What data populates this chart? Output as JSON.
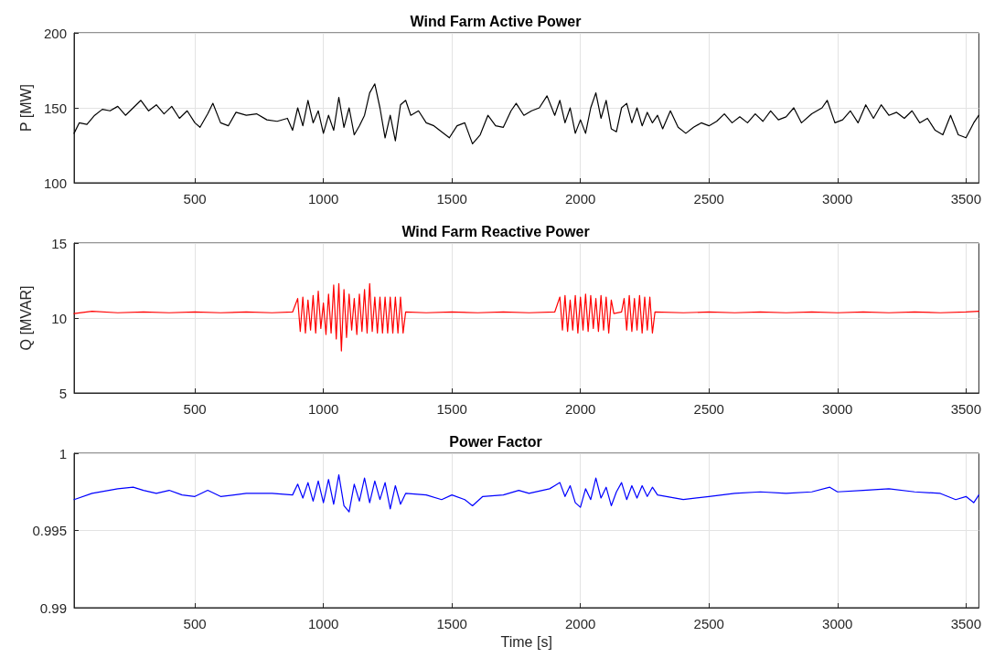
{
  "chart_data": [
    {
      "type": "line",
      "title": "Wind Farm Active Power",
      "ylabel": "P [MW]",
      "xlim": [
        30,
        3550
      ],
      "xticks": [
        500,
        1000,
        1500,
        2000,
        2500,
        3000,
        3500
      ],
      "ylim": [
        100,
        200
      ],
      "yticks": [
        100,
        150,
        200
      ],
      "grid": true,
      "marker": "none",
      "line_style": "solid",
      "series": [
        {
          "color": "#000000",
          "x": [
            30,
            50,
            80,
            110,
            140,
            170,
            200,
            230,
            260,
            290,
            320,
            350,
            380,
            410,
            440,
            470,
            500,
            520,
            550,
            570,
            600,
            630,
            660,
            700,
            740,
            780,
            820,
            860,
            880,
            900,
            920,
            940,
            960,
            980,
            1000,
            1020,
            1040,
            1060,
            1080,
            1100,
            1120,
            1140,
            1160,
            1180,
            1200,
            1220,
            1240,
            1260,
            1280,
            1300,
            1320,
            1340,
            1370,
            1400,
            1430,
            1460,
            1490,
            1520,
            1550,
            1580,
            1610,
            1640,
            1670,
            1700,
            1730,
            1750,
            1780,
            1810,
            1840,
            1870,
            1900,
            1920,
            1940,
            1960,
            1980,
            2000,
            2020,
            2040,
            2060,
            2080,
            2100,
            2120,
            2140,
            2160,
            2180,
            2200,
            2220,
            2240,
            2260,
            2280,
            2300,
            2320,
            2350,
            2380,
            2410,
            2440,
            2470,
            2500,
            2530,
            2560,
            2590,
            2620,
            2650,
            2680,
            2710,
            2740,
            2770,
            2800,
            2830,
            2860,
            2900,
            2940,
            2960,
            2990,
            3020,
            3050,
            3080,
            3110,
            3140,
            3170,
            3200,
            3230,
            3260,
            3290,
            3320,
            3350,
            3380,
            3410,
            3440,
            3470,
            3500,
            3530,
            3550
          ],
          "values": [
            133,
            140,
            139,
            145,
            149,
            148,
            151,
            145,
            150,
            155,
            148,
            152,
            146,
            151,
            143,
            148,
            140,
            137,
            146,
            153,
            140,
            138,
            147,
            145,
            146,
            142,
            141,
            143,
            135,
            150,
            138,
            155,
            140,
            148,
            133,
            145,
            135,
            157,
            137,
            150,
            132,
            138,
            145,
            160,
            166,
            150,
            130,
            145,
            128,
            152,
            155,
            145,
            148,
            140,
            138,
            134,
            130,
            138,
            140,
            126,
            132,
            145,
            138,
            137,
            148,
            153,
            145,
            148,
            150,
            158,
            145,
            155,
            140,
            150,
            133,
            142,
            133,
            150,
            160,
            143,
            155,
            136,
            134,
            150,
            153,
            140,
            150,
            138,
            147,
            140,
            145,
            136,
            148,
            137,
            133,
            137,
            140,
            138,
            141,
            146,
            140,
            144,
            140,
            146,
            141,
            148,
            142,
            144,
            150,
            140,
            146,
            150,
            155,
            140,
            142,
            148,
            140,
            152,
            143,
            152,
            145,
            147,
            143,
            148,
            140,
            143,
            135,
            132,
            145,
            132,
            130,
            140,
            145
          ]
        }
      ]
    },
    {
      "type": "line",
      "title": "Wind Farm Reactive Power",
      "ylabel": "Q [MVAR]",
      "xlim": [
        30,
        3550
      ],
      "xticks": [
        500,
        1000,
        1500,
        2000,
        2500,
        3000,
        3500
      ],
      "ylim": [
        5,
        15
      ],
      "yticks": [
        5,
        10,
        15
      ],
      "grid": true,
      "marker": "none",
      "line_style": "solid",
      "series": [
        {
          "color": "#ff0000",
          "x": [
            30,
            100,
            200,
            300,
            400,
            500,
            600,
            700,
            800,
            880,
            900,
            910,
            920,
            930,
            940,
            950,
            960,
            970,
            980,
            990,
            1000,
            1010,
            1020,
            1030,
            1040,
            1050,
            1060,
            1070,
            1080,
            1090,
            1100,
            1110,
            1120,
            1130,
            1140,
            1150,
            1160,
            1170,
            1180,
            1190,
            1200,
            1210,
            1220,
            1230,
            1240,
            1250,
            1260,
            1270,
            1280,
            1290,
            1300,
            1310,
            1320,
            1400,
            1500,
            1600,
            1700,
            1800,
            1900,
            1920,
            1930,
            1940,
            1950,
            1960,
            1970,
            1980,
            1990,
            2000,
            2010,
            2020,
            2030,
            2040,
            2050,
            2060,
            2070,
            2080,
            2090,
            2100,
            2110,
            2120,
            2130,
            2160,
            2170,
            2180,
            2190,
            2200,
            2210,
            2220,
            2230,
            2240,
            2250,
            2260,
            2270,
            2280,
            2290,
            2400,
            2500,
            2600,
            2700,
            2800,
            2900,
            3000,
            3100,
            3200,
            3300,
            3400,
            3500,
            3550
          ],
          "values": [
            10.3,
            10.45,
            10.35,
            10.4,
            10.35,
            10.4,
            10.35,
            10.4,
            10.35,
            10.4,
            11.3,
            9.1,
            11.4,
            9.0,
            11.2,
            9.2,
            11.5,
            9.0,
            11.8,
            9.3,
            11.0,
            8.9,
            11.6,
            9.0,
            12.2,
            8.6,
            12.3,
            7.8,
            11.9,
            8.7,
            11.6,
            9.2,
            11.3,
            8.9,
            11.6,
            9.1,
            11.9,
            9.0,
            12.3,
            9.1,
            11.4,
            9.0,
            11.4,
            9.0,
            11.4,
            9.0,
            11.4,
            9.0,
            11.4,
            9.0,
            11.4,
            9.0,
            10.4,
            10.35,
            10.4,
            10.35,
            10.4,
            10.35,
            10.4,
            11.4,
            9.2,
            11.5,
            9.1,
            11.2,
            9.2,
            11.5,
            9.0,
            11.4,
            9.2,
            11.6,
            9.1,
            11.5,
            9.3,
            11.3,
            9.1,
            11.5,
            9.2,
            11.4,
            9.0,
            11.2,
            10.3,
            10.4,
            11.3,
            9.2,
            11.5,
            9.1,
            11.3,
            9.2,
            11.5,
            9.0,
            11.4,
            9.2,
            11.4,
            9.0,
            10.4,
            10.35,
            10.4,
            10.35,
            10.4,
            10.35,
            10.4,
            10.35,
            10.4,
            10.35,
            10.4,
            10.35,
            10.4,
            10.45
          ]
        }
      ]
    },
    {
      "type": "line",
      "title": "Power Factor",
      "xlabel": "Time [s]",
      "xlim": [
        30,
        3550
      ],
      "xticks": [
        500,
        1000,
        1500,
        2000,
        2500,
        3000,
        3500
      ],
      "ylim": [
        0.99,
        1.0
      ],
      "yticks": [
        0.99,
        0.995,
        1
      ],
      "grid": true,
      "marker": "none",
      "line_style": "solid",
      "series": [
        {
          "color": "#0000ff",
          "x": [
            30,
            100,
            200,
            260,
            300,
            350,
            400,
            450,
            500,
            550,
            600,
            700,
            800,
            880,
            900,
            920,
            940,
            960,
            980,
            1000,
            1020,
            1040,
            1060,
            1080,
            1100,
            1120,
            1140,
            1160,
            1180,
            1200,
            1220,
            1240,
            1260,
            1280,
            1300,
            1320,
            1400,
            1460,
            1500,
            1550,
            1580,
            1620,
            1700,
            1760,
            1800,
            1880,
            1900,
            1920,
            1940,
            1960,
            1980,
            2000,
            2020,
            2040,
            2060,
            2080,
            2100,
            2120,
            2140,
            2160,
            2180,
            2200,
            2220,
            2240,
            2260,
            2280,
            2300,
            2400,
            2500,
            2600,
            2700,
            2800,
            2900,
            2970,
            3000,
            3100,
            3200,
            3300,
            3400,
            3460,
            3500,
            3530,
            3550
          ],
          "values": [
            0.997,
            0.9974,
            0.9977,
            0.9978,
            0.9976,
            0.9974,
            0.9976,
            0.9973,
            0.9972,
            0.9976,
            0.9972,
            0.9974,
            0.9974,
            0.9973,
            0.998,
            0.9971,
            0.9981,
            0.9969,
            0.9982,
            0.9968,
            0.9983,
            0.9967,
            0.9986,
            0.9966,
            0.9962,
            0.998,
            0.9969,
            0.9984,
            0.9968,
            0.9982,
            0.997,
            0.9981,
            0.9964,
            0.9979,
            0.9967,
            0.9974,
            0.9973,
            0.997,
            0.9973,
            0.997,
            0.9966,
            0.9972,
            0.9973,
            0.9976,
            0.9974,
            0.9977,
            0.9979,
            0.9981,
            0.9972,
            0.9979,
            0.9968,
            0.9965,
            0.9977,
            0.997,
            0.9984,
            0.9971,
            0.9978,
            0.9966,
            0.9975,
            0.9981,
            0.997,
            0.9979,
            0.9971,
            0.9979,
            0.9972,
            0.9978,
            0.9973,
            0.997,
            0.9972,
            0.9974,
            0.9975,
            0.9974,
            0.9975,
            0.9978,
            0.9975,
            0.9976,
            0.9977,
            0.9975,
            0.9974,
            0.997,
            0.9972,
            0.9968,
            0.9973
          ]
        }
      ]
    }
  ]
}
